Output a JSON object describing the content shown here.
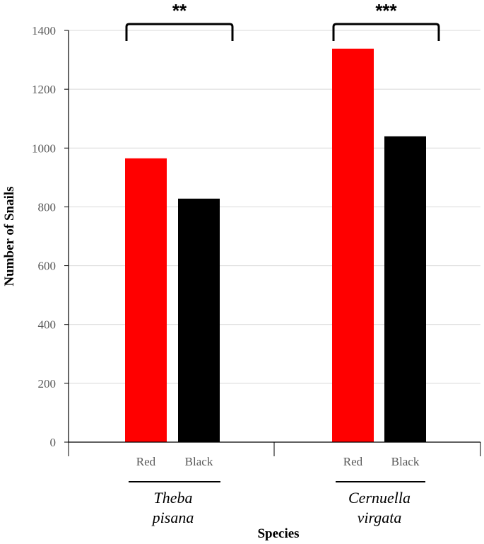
{
  "chart_data": {
    "type": "bar",
    "ylabel": "Number of Snails",
    "xlabel": "Species",
    "ylim": [
      0,
      1400
    ],
    "yticks": [
      0,
      200,
      400,
      600,
      800,
      1000,
      1200,
      1400
    ],
    "grid": true,
    "groups": [
      {
        "species": [
          "Theba",
          "pisana"
        ],
        "significance": "**",
        "bars": [
          {
            "category": "Red",
            "value": 965,
            "color": "#ff0000"
          },
          {
            "category": "Black",
            "value": 828,
            "color": "#000000"
          }
        ]
      },
      {
        "species": [
          "Cernuella",
          "virgata"
        ],
        "significance": "***",
        "bars": [
          {
            "category": "Red",
            "value": 1338,
            "color": "#ff0000"
          },
          {
            "category": "Black",
            "value": 1040,
            "color": "#000000"
          }
        ]
      }
    ]
  }
}
